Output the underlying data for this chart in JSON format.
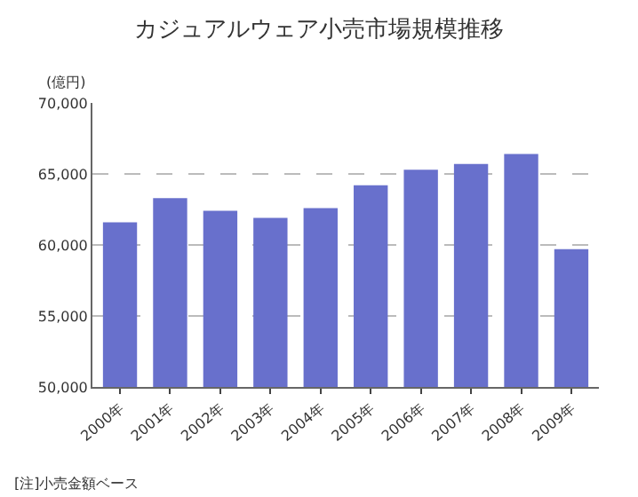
{
  "chart_data": {
    "type": "bar",
    "title": "カジュアルウェア小売市場規模推移",
    "ylabel": "(億円)",
    "categories": [
      "2000年",
      "2001年",
      "2002年",
      "2003年",
      "2004年",
      "2005年",
      "2006年",
      "2007年",
      "2008年",
      "2009年"
    ],
    "values": [
      61600,
      63300,
      62400,
      61900,
      62600,
      64200,
      65300,
      65700,
      66400,
      59700
    ],
    "color": "#6870cc",
    "ylim": [
      50000,
      70000
    ],
    "yticks": [
      {
        "value": 50000,
        "label": "50,000"
      },
      {
        "value": 55000,
        "label": "55,000"
      },
      {
        "value": 60000,
        "label": "60,000"
      },
      {
        "value": 65000,
        "label": "65,000"
      },
      {
        "value": 70000,
        "label": "70,000"
      }
    ],
    "grid": "y",
    "annotations": [
      "[注]小売金額ベース"
    ]
  }
}
